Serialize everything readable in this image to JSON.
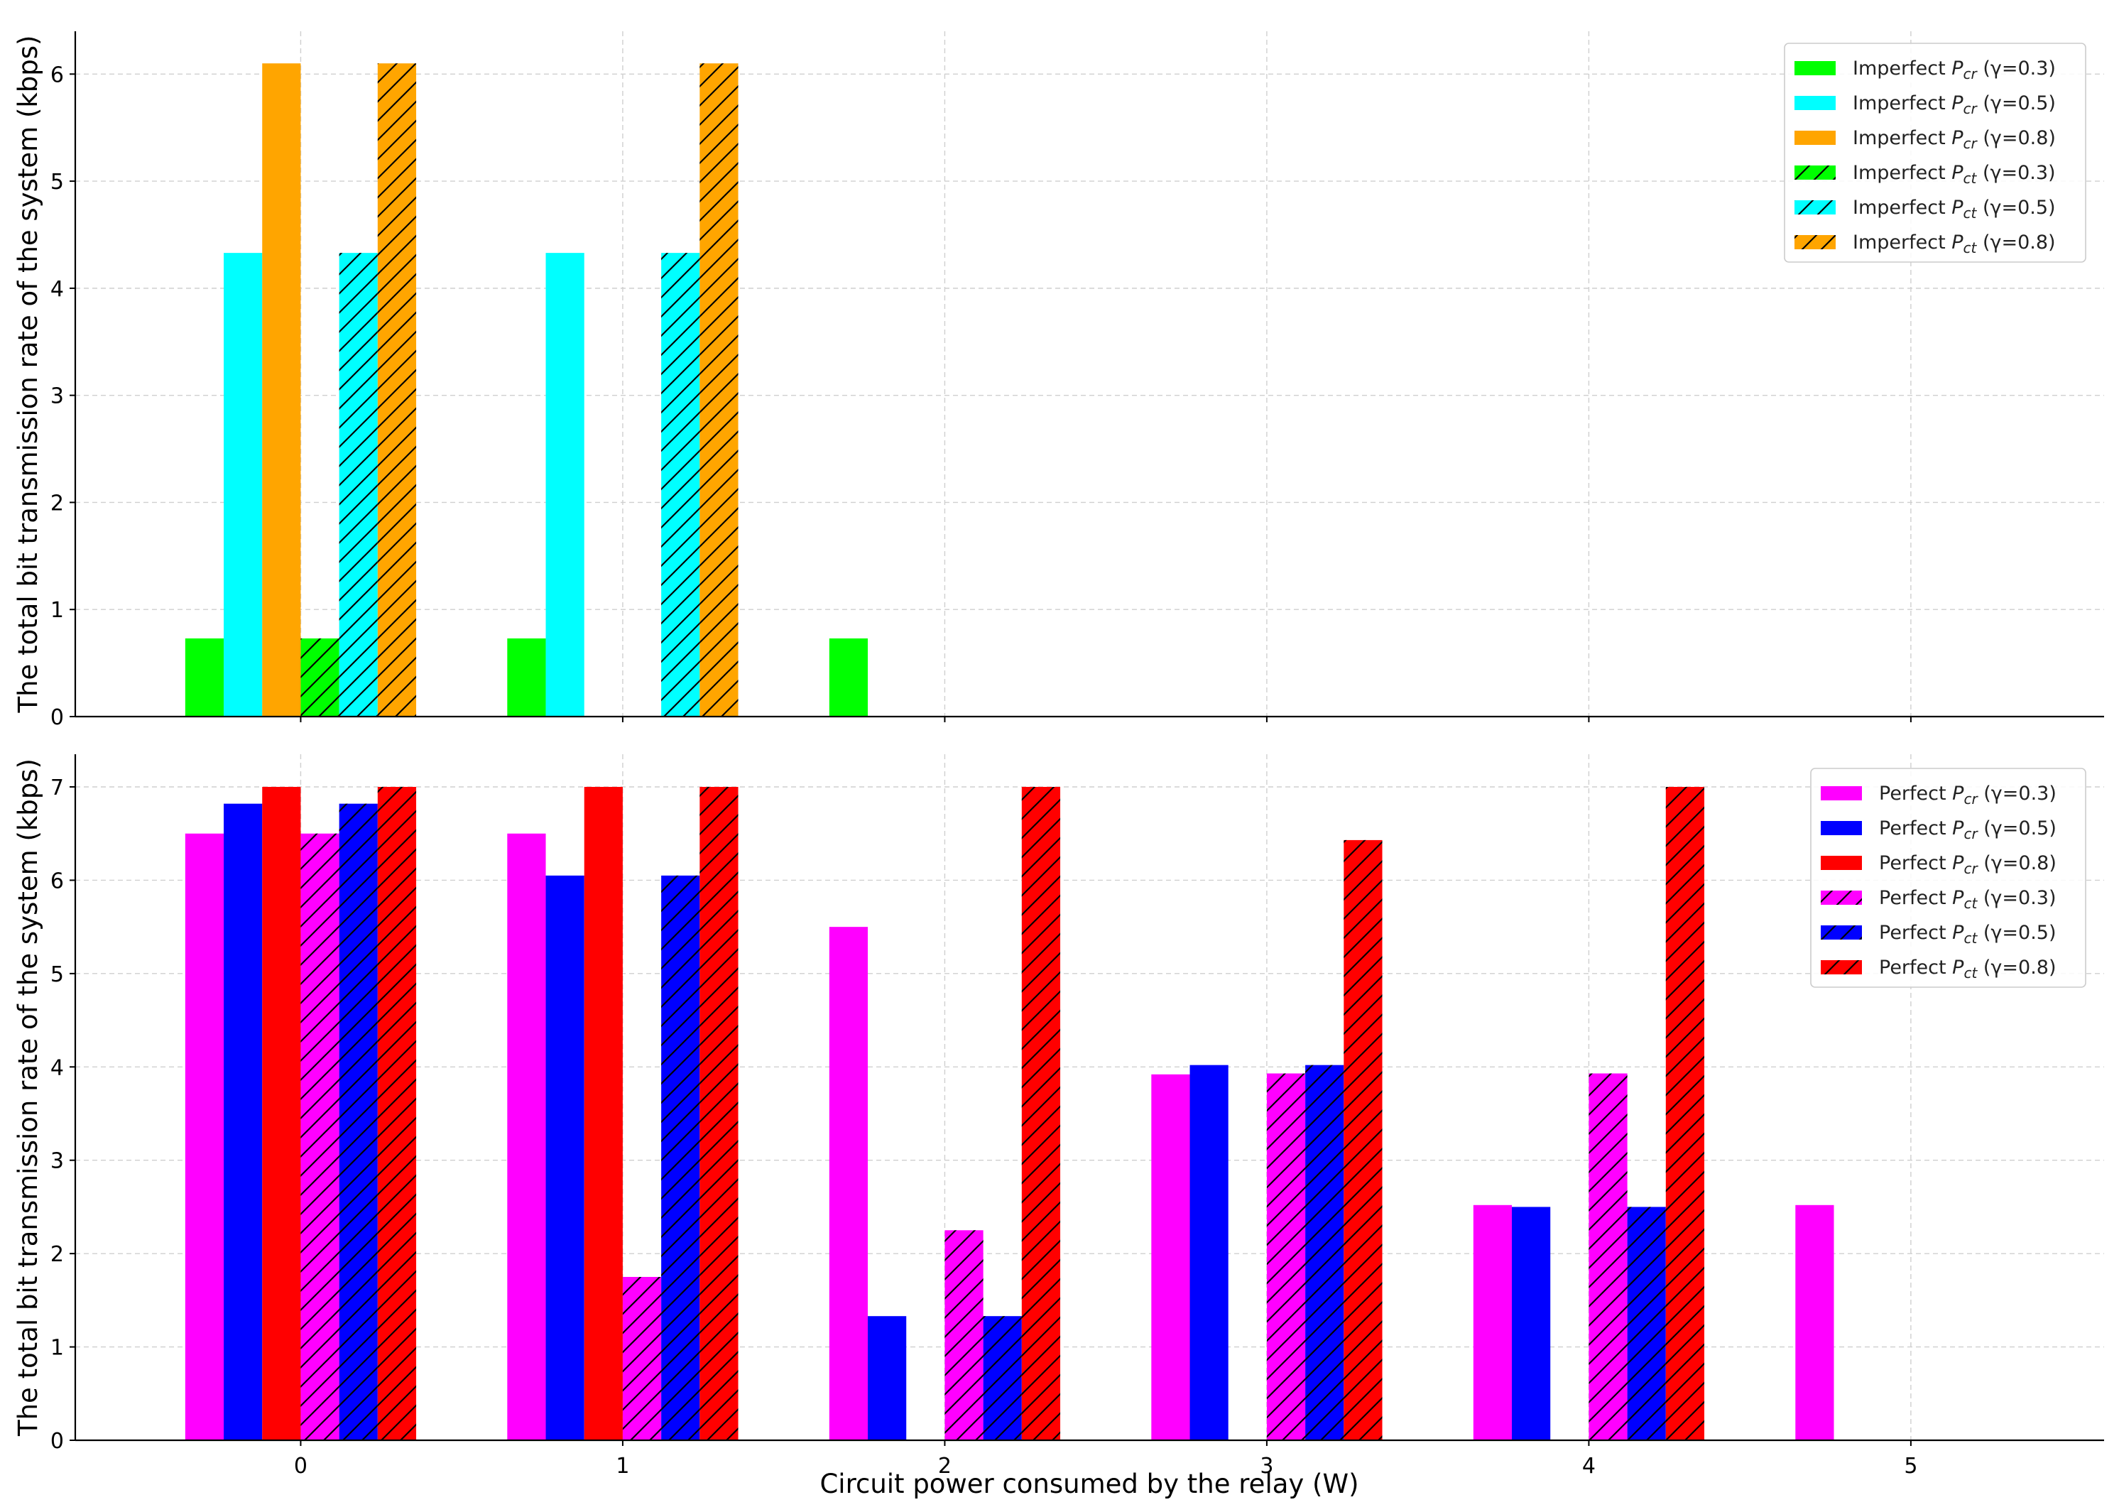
{
  "chart_data": [
    {
      "type": "bar",
      "panel": "top",
      "categories": [
        "0",
        "1",
        "2",
        "3",
        "4",
        "5"
      ],
      "x": [
        0,
        1,
        2,
        3,
        4,
        5
      ],
      "ylabel": "The total bit transmission rate of the system (kbps)",
      "xlabel": "",
      "ylim": [
        0,
        6.4
      ],
      "xlim": [
        -0.7,
        5.6
      ],
      "yticks": [
        0,
        1,
        2,
        3,
        4,
        5,
        6
      ],
      "grid": true,
      "legend_position": "top-right",
      "series": [
        {
          "name_pre": "Imperfect ",
          "name_P": "P",
          "name_sub": "cr",
          "name_post": " (γ=0.3)",
          "color": "#00ff00",
          "hatch": false,
          "values": [
            0.73,
            0.73,
            0.73,
            0,
            0,
            0
          ]
        },
        {
          "name_pre": "Imperfect ",
          "name_P": "P",
          "name_sub": "cr",
          "name_post": " (γ=0.5)",
          "color": "#00ffff",
          "hatch": false,
          "values": [
            4.33,
            4.33,
            0,
            0,
            0,
            0
          ]
        },
        {
          "name_pre": "Imperfect ",
          "name_P": "P",
          "name_sub": "cr",
          "name_post": " (γ=0.8)",
          "color": "#ffa500",
          "hatch": false,
          "values": [
            6.1,
            0,
            0,
            0,
            0,
            0
          ]
        },
        {
          "name_pre": "Imperfect ",
          "name_P": "P",
          "name_sub": "ct",
          "name_post": " (γ=0.3)",
          "color": "#00ff00",
          "hatch": true,
          "values": [
            0.73,
            0,
            0,
            0,
            0,
            0
          ]
        },
        {
          "name_pre": "Imperfect ",
          "name_P": "P",
          "name_sub": "ct",
          "name_post": " (γ=0.5)",
          "color": "#00ffff",
          "hatch": true,
          "values": [
            4.33,
            4.33,
            0,
            0,
            0,
            0
          ]
        },
        {
          "name_pre": "Imperfect ",
          "name_P": "P",
          "name_sub": "ct",
          "name_post": " (γ=0.8)",
          "color": "#ffa500",
          "hatch": true,
          "values": [
            6.1,
            6.1,
            0,
            0,
            0,
            0
          ]
        }
      ]
    },
    {
      "type": "bar",
      "panel": "bottom",
      "categories": [
        "0",
        "1",
        "2",
        "3",
        "4",
        "5"
      ],
      "x": [
        0,
        1,
        2,
        3,
        4,
        5
      ],
      "ylabel": "The total bit transmission rate of the system (kbps)",
      "xlabel": "Circuit power consumed by the relay (W)",
      "ylim": [
        0,
        7.35
      ],
      "xlim": [
        -0.7,
        5.6
      ],
      "yticks": [
        0,
        1,
        2,
        3,
        4,
        5,
        6,
        7
      ],
      "grid": true,
      "legend_position": "top-right",
      "series": [
        {
          "name_pre": "Perfect ",
          "name_P": "P",
          "name_sub": "cr",
          "name_post": " (γ=0.3)",
          "color": "#ff00ff",
          "hatch": false,
          "values": [
            6.5,
            6.5,
            5.5,
            3.92,
            2.52,
            2.52
          ]
        },
        {
          "name_pre": "Perfect ",
          "name_P": "P",
          "name_sub": "cr",
          "name_post": " (γ=0.5)",
          "color": "#0000ff",
          "hatch": false,
          "values": [
            6.82,
            6.05,
            1.33,
            4.02,
            2.5,
            0
          ]
        },
        {
          "name_pre": "Perfect ",
          "name_P": "P",
          "name_sub": "cr",
          "name_post": " (γ=0.8)",
          "color": "#ff0000",
          "hatch": false,
          "values": [
            7.0,
            7.0,
            0,
            0,
            0,
            0
          ]
        },
        {
          "name_pre": "Perfect ",
          "name_P": "P",
          "name_sub": "ct",
          "name_post": " (γ=0.3)",
          "color": "#ff00ff",
          "hatch": true,
          "values": [
            6.5,
            1.75,
            2.25,
            3.93,
            3.93,
            0
          ]
        },
        {
          "name_pre": "Perfect ",
          "name_P": "P",
          "name_sub": "ct",
          "name_post": " (γ=0.5)",
          "color": "#0000ff",
          "hatch": true,
          "values": [
            6.82,
            6.05,
            1.33,
            4.02,
            2.5,
            0
          ]
        },
        {
          "name_pre": "Perfect ",
          "name_P": "P",
          "name_sub": "ct",
          "name_post": " (γ=0.8)",
          "color": "#ff0000",
          "hatch": true,
          "values": [
            7.0,
            7.0,
            7.0,
            6.43,
            7.0,
            0
          ]
        }
      ]
    }
  ]
}
